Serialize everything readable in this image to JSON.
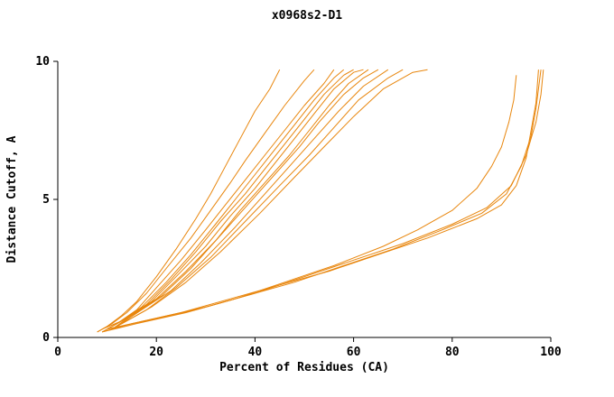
{
  "chart_data": {
    "type": "line",
    "title": "x0968s2-D1",
    "xlabel": "Percent of Residues (CA)",
    "ylabel": "Distance Cutoff, A",
    "xlim": [
      0,
      100
    ],
    "ylim": [
      0,
      10
    ],
    "xticks": [
      0,
      20,
      40,
      60,
      80,
      100
    ],
    "yticks": [
      0,
      5,
      10
    ],
    "grid": false,
    "legend": "none",
    "line_color": "#e8860d",
    "axis_color": "#000000",
    "background": "#ffffff",
    "series": [
      {
        "points": [
          [
            8,
            0.2
          ],
          [
            10,
            0.4
          ],
          [
            13,
            0.8
          ],
          [
            16,
            1.3
          ],
          [
            20,
            2.2
          ],
          [
            24,
            3.2
          ],
          [
            28,
            4.3
          ],
          [
            31,
            5.2
          ],
          [
            34,
            6.2
          ],
          [
            37,
            7.2
          ],
          [
            40,
            8.2
          ],
          [
            43,
            9.0
          ],
          [
            45,
            9.7
          ]
        ]
      },
      {
        "points": [
          [
            8,
            0.2
          ],
          [
            11,
            0.5
          ],
          [
            14,
            0.9
          ],
          [
            18,
            1.6
          ],
          [
            22,
            2.5
          ],
          [
            27,
            3.6
          ],
          [
            31,
            4.6
          ],
          [
            35,
            5.6
          ],
          [
            38,
            6.4
          ],
          [
            42,
            7.4
          ],
          [
            46,
            8.4
          ],
          [
            50,
            9.3
          ],
          [
            52,
            9.7
          ]
        ]
      },
      {
        "points": [
          [
            9,
            0.2
          ],
          [
            12,
            0.5
          ],
          [
            16,
            1.0
          ],
          [
            20,
            1.8
          ],
          [
            25,
            2.8
          ],
          [
            30,
            3.9
          ],
          [
            34,
            4.8
          ],
          [
            38,
            5.7
          ],
          [
            42,
            6.6
          ],
          [
            46,
            7.5
          ],
          [
            50,
            8.4
          ],
          [
            54,
            9.2
          ],
          [
            56,
            9.7
          ]
        ]
      },
      {
        "points": [
          [
            9,
            0.3
          ],
          [
            13,
            0.6
          ],
          [
            17,
            1.1
          ],
          [
            22,
            2.0
          ],
          [
            27,
            3.0
          ],
          [
            32,
            4.1
          ],
          [
            36,
            5.0
          ],
          [
            40,
            5.9
          ],
          [
            44,
            6.8
          ],
          [
            48,
            7.7
          ],
          [
            52,
            8.6
          ],
          [
            56,
            9.4
          ],
          [
            58,
            9.7
          ]
        ]
      },
      {
        "points": [
          [
            10,
            0.3
          ],
          [
            14,
            0.7
          ],
          [
            18,
            1.2
          ],
          [
            23,
            2.1
          ],
          [
            28,
            3.1
          ],
          [
            33,
            4.2
          ],
          [
            38,
            5.2
          ],
          [
            42,
            6.1
          ],
          [
            46,
            7.0
          ],
          [
            50,
            7.9
          ],
          [
            54,
            8.8
          ],
          [
            58,
            9.5
          ],
          [
            60,
            9.7
          ]
        ]
      },
      {
        "points": [
          [
            10,
            0.3
          ],
          [
            14,
            0.7
          ],
          [
            19,
            1.3
          ],
          [
            24,
            2.2
          ],
          [
            30,
            3.3
          ],
          [
            35,
            4.4
          ],
          [
            40,
            5.4
          ],
          [
            44,
            6.3
          ],
          [
            48,
            7.2
          ],
          [
            52,
            8.1
          ],
          [
            56,
            9.0
          ],
          [
            60,
            9.6
          ],
          [
            62,
            9.7
          ]
        ]
      },
      {
        "points": [
          [
            11,
            0.3
          ],
          [
            15,
            0.8
          ],
          [
            20,
            1.4
          ],
          [
            26,
            2.4
          ],
          [
            32,
            3.5
          ],
          [
            37,
            4.6
          ],
          [
            42,
            5.6
          ],
          [
            47,
            6.6
          ],
          [
            51,
            7.5
          ],
          [
            55,
            8.4
          ],
          [
            59,
            9.2
          ],
          [
            63,
            9.7
          ]
        ]
      },
      {
        "points": [
          [
            11,
            0.4
          ],
          [
            16,
            0.9
          ],
          [
            21,
            1.5
          ],
          [
            27,
            2.5
          ],
          [
            33,
            3.7
          ],
          [
            39,
            4.9
          ],
          [
            44,
            5.9
          ],
          [
            49,
            6.9
          ],
          [
            53,
            7.8
          ],
          [
            58,
            8.8
          ],
          [
            62,
            9.4
          ],
          [
            65,
            9.7
          ]
        ]
      },
      {
        "points": [
          [
            12,
            0.4
          ],
          [
            17,
            1.0
          ],
          [
            23,
            1.7
          ],
          [
            29,
            2.7
          ],
          [
            36,
            4.0
          ],
          [
            42,
            5.2
          ],
          [
            47,
            6.2
          ],
          [
            52,
            7.2
          ],
          [
            57,
            8.2
          ],
          [
            62,
            9.1
          ],
          [
            67,
            9.7
          ]
        ]
      },
      {
        "points": [
          [
            12,
            0.4
          ],
          [
            18,
            1.0
          ],
          [
            24,
            1.8
          ],
          [
            31,
            2.9
          ],
          [
            38,
            4.2
          ],
          [
            45,
            5.5
          ],
          [
            51,
            6.6
          ],
          [
            56,
            7.6
          ],
          [
            61,
            8.6
          ],
          [
            67,
            9.4
          ],
          [
            70,
            9.7
          ]
        ]
      },
      {
        "points": [
          [
            13,
            0.5
          ],
          [
            19,
            1.1
          ],
          [
            26,
            2.0
          ],
          [
            33,
            3.1
          ],
          [
            41,
            4.5
          ],
          [
            48,
            5.8
          ],
          [
            54,
            6.9
          ],
          [
            60,
            8.0
          ],
          [
            66,
            9.0
          ],
          [
            72,
            9.6
          ],
          [
            75,
            9.7
          ]
        ]
      },
      {
        "points": [
          [
            9,
            0.2
          ],
          [
            15,
            0.5
          ],
          [
            25,
            0.9
          ],
          [
            35,
            1.4
          ],
          [
            45,
            1.9
          ],
          [
            55,
            2.4
          ],
          [
            65,
            3.0
          ],
          [
            75,
            3.6
          ],
          [
            85,
            4.3
          ],
          [
            90,
            4.8
          ],
          [
            93,
            5.5
          ],
          [
            95,
            6.5
          ],
          [
            96,
            7.5
          ],
          [
            97,
            8.5
          ],
          [
            97.5,
            9.7
          ]
        ]
      },
      {
        "points": [
          [
            10,
            0.3
          ],
          [
            18,
            0.6
          ],
          [
            28,
            1.0
          ],
          [
            38,
            1.5
          ],
          [
            48,
            2.0
          ],
          [
            58,
            2.6
          ],
          [
            68,
            3.2
          ],
          [
            78,
            3.9
          ],
          [
            86,
            4.5
          ],
          [
            91,
            5.2
          ],
          [
            94,
            6.2
          ],
          [
            96,
            7.3
          ],
          [
            97,
            8.3
          ],
          [
            98,
            9.7
          ]
        ]
      },
      {
        "points": [
          [
            10,
            0.3
          ],
          [
            20,
            0.7
          ],
          [
            30,
            1.1
          ],
          [
            40,
            1.6
          ],
          [
            50,
            2.2
          ],
          [
            60,
            2.8
          ],
          [
            70,
            3.4
          ],
          [
            80,
            4.1
          ],
          [
            87,
            4.7
          ],
          [
            92,
            5.5
          ],
          [
            95,
            6.6
          ],
          [
            97,
            7.8
          ],
          [
            98,
            8.8
          ],
          [
            98.5,
            9.7
          ]
        ]
      },
      {
        "points": [
          [
            9,
            0.2
          ],
          [
            16,
            0.5
          ],
          [
            26,
            0.9
          ],
          [
            36,
            1.4
          ],
          [
            46,
            2.0
          ],
          [
            56,
            2.6
          ],
          [
            66,
            3.3
          ],
          [
            73,
            3.9
          ],
          [
            80,
            4.6
          ],
          [
            85,
            5.4
          ],
          [
            88,
            6.2
          ],
          [
            90,
            6.9
          ],
          [
            91.5,
            7.8
          ],
          [
            92.5,
            8.6
          ],
          [
            93,
            9.5
          ]
        ]
      }
    ]
  }
}
